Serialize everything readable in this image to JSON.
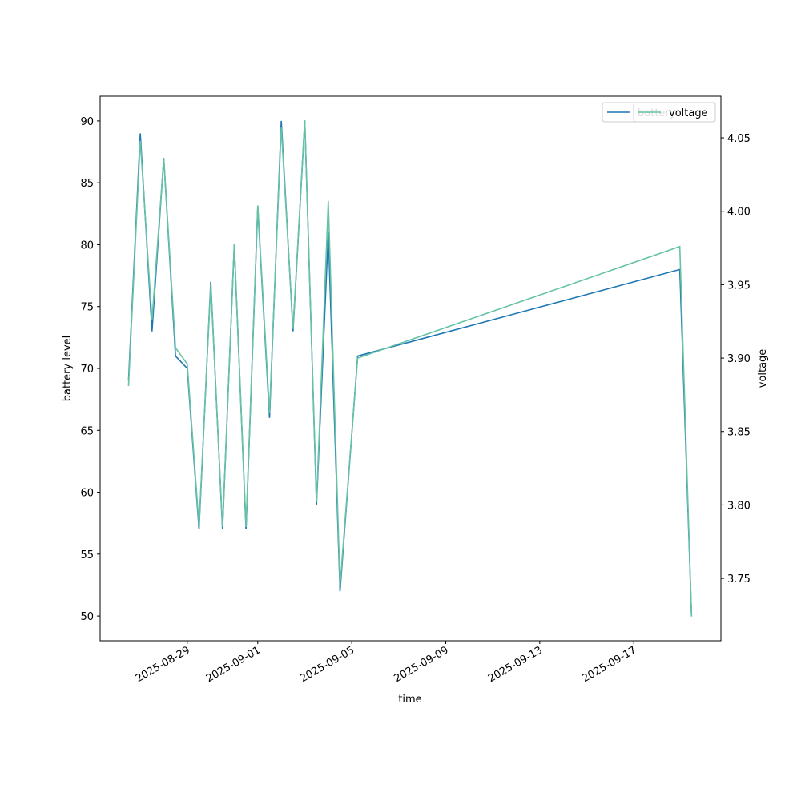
{
  "chart_data": {
    "type": "line",
    "x_label": "time",
    "y_label": "battery level",
    "y2_label": "voltage",
    "x": [
      "2025-08-26 12:00",
      "2025-08-27 00:00",
      "2025-08-27 12:00",
      "2025-08-28 00:00",
      "2025-08-28 12:00",
      "2025-08-29 00:00",
      "2025-08-29 12:00",
      "2025-08-30 00:00",
      "2025-08-30 12:00",
      "2025-08-31 00:00",
      "2025-08-31 12:00",
      "2025-09-01 00:00",
      "2025-09-01 12:00",
      "2025-09-02 00:00",
      "2025-09-02 12:00",
      "2025-09-03 00:00",
      "2025-09-03 12:00",
      "2025-09-04 00:00",
      "2025-09-04 12:00",
      "2025-09-05 06:00",
      "2025-09-18 23:00",
      "2025-09-19 11:00"
    ],
    "series": [
      {
        "name": "battery",
        "color": "#1f77b4",
        "values": [
          69,
          89,
          73,
          87,
          71,
          70,
          57,
          77,
          57,
          80,
          57,
          83,
          66,
          90,
          73,
          90,
          59,
          81,
          52,
          71,
          78,
          50
        ]
      },
      {
        "name": "voltage",
        "color": "#66c2a5",
        "axis": "y2",
        "values": [
          3.881,
          4.048,
          3.926,
          4.036,
          3.907,
          3.896,
          3.786,
          3.95,
          3.785,
          3.977,
          3.785,
          4.004,
          3.863,
          4.057,
          3.92,
          4.062,
          3.802,
          4.007,
          3.745,
          3.9,
          3.976,
          3.724
        ]
      }
    ],
    "xlim": [
      "2025-08-25 07:00",
      "2025-09-20 17:00"
    ],
    "xticks": [
      "2025-08-29",
      "2025-09-01",
      "2025-09-05",
      "2025-09-09",
      "2025-09-13",
      "2025-09-17"
    ],
    "ylim": [
      48,
      92
    ],
    "yticks": [
      50,
      55,
      60,
      65,
      70,
      75,
      80,
      85,
      90
    ],
    "y2lim": [
      3.7075,
      4.0784
    ],
    "y2ticks": [
      3.75,
      {
        "value": 3.8,
        "label": "3.80"
      },
      3.85,
      {
        "value": 3.9,
        "label": "3.90"
      },
      3.95,
      {
        "value": 4.0,
        "label": "4.00"
      },
      4.05
    ],
    "legend": "upper right",
    "grid": false
  }
}
